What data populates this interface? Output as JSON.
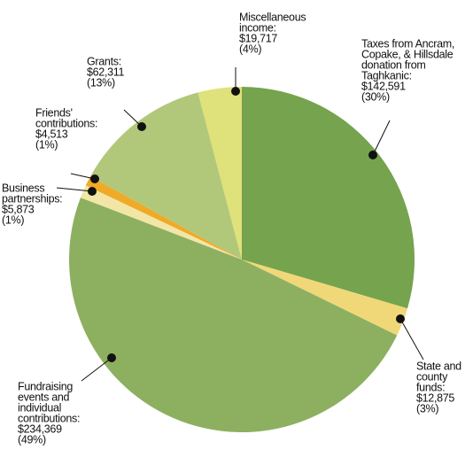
{
  "chart_data": {
    "type": "pie",
    "labels": [
      [
        "Taxes from Ancram,",
        "Copake, & Hillsdale",
        "donation from",
        "Taghkanic:"
      ],
      [
        "State and",
        "county",
        "funds:"
      ],
      [
        "Fundraising",
        "events and",
        "individual",
        "contributions:"
      ],
      [
        "Business",
        "partnerships:"
      ],
      [
        "Friends'",
        "contributions:"
      ],
      [
        "Grants:"
      ],
      [
        "Miscellaneous",
        "income:"
      ]
    ],
    "values": [
      142591,
      12875,
      234369,
      5873,
      4513,
      62311,
      19717
    ],
    "value_labels": [
      "$142,591",
      "$12,875",
      "$234,369",
      "$5,873",
      "$4,513",
      "$62,311",
      "$19,717"
    ],
    "percent_labels": [
      "(30%)",
      "(3%)",
      "(49%)",
      "(1%)",
      "(1%)",
      "(13%)",
      "(4%)"
    ],
    "colors": [
      "#76a34e",
      "#f0d878",
      "#8db060",
      "#f2e6a6",
      "#efaa28",
      "#b1c87a",
      "#dfe17a"
    ]
  }
}
